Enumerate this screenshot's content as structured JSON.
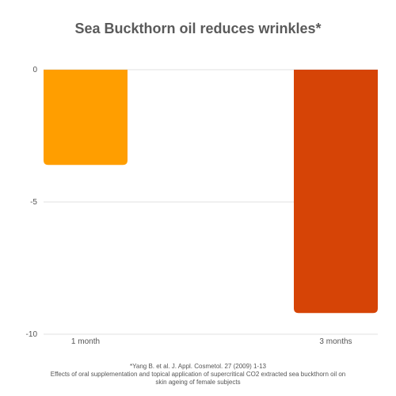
{
  "chart_data": {
    "type": "bar",
    "title": "Sea Buckthorn oil reduces wrinkles*",
    "categories": [
      "1 month",
      "3 months"
    ],
    "values": [
      -3.6,
      -9.2
    ],
    "bar_colors": [
      "#FF9E00",
      "#D64406"
    ],
    "ylim": [
      -10,
      0
    ],
    "y_ticks": [
      0,
      -5,
      -10
    ],
    "grid": true,
    "legend": "none"
  },
  "footnotes": {
    "line1": "*Yang B. et al. J. Appl. Cosmetol. 27 (2009) 1-13",
    "line2": "Effects of oral supplementation and topical application of supercritical CO2 extracted sea buckthorn oil on",
    "line3": "skin ageing of female subjects"
  },
  "colors": {
    "title": "#5a5a5a",
    "grid": "#e0e0e0",
    "axis_text": "#555555"
  }
}
